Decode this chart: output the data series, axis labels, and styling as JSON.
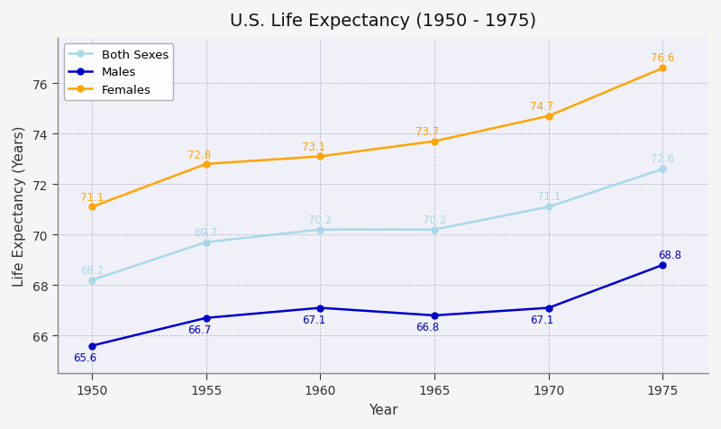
{
  "title": "U.S. Life Expectancy (1950 - 1975)",
  "xlabel": "Year",
  "ylabel": "Life Expectancy (Years)",
  "years": [
    1950,
    1955,
    1960,
    1965,
    1970,
    1975
  ],
  "both_sexes": [
    68.2,
    69.7,
    70.2,
    70.2,
    71.1,
    72.6
  ],
  "males": [
    65.6,
    66.7,
    67.1,
    66.8,
    67.1,
    68.8
  ],
  "females": [
    71.1,
    72.8,
    73.1,
    73.7,
    74.7,
    76.6
  ],
  "color_both": "#A8D8EA",
  "color_males": "#0000CC",
  "color_females": "#FFA500",
  "background_color": "#F5F5F5",
  "plot_bg_color": "#F0F0F8",
  "grid_color": "#BBBBCC",
  "spine_color": "#888888",
  "tick_color": "#333333",
  "title_color": "#111111",
  "ylim": [
    64.5,
    77.8
  ],
  "xlim": [
    1948.5,
    1977
  ],
  "title_fontsize": 14,
  "label_fontsize": 11,
  "tick_fontsize": 10,
  "annot_fontsize": 8.5,
  "linewidth": 1.8,
  "markersize": 5
}
